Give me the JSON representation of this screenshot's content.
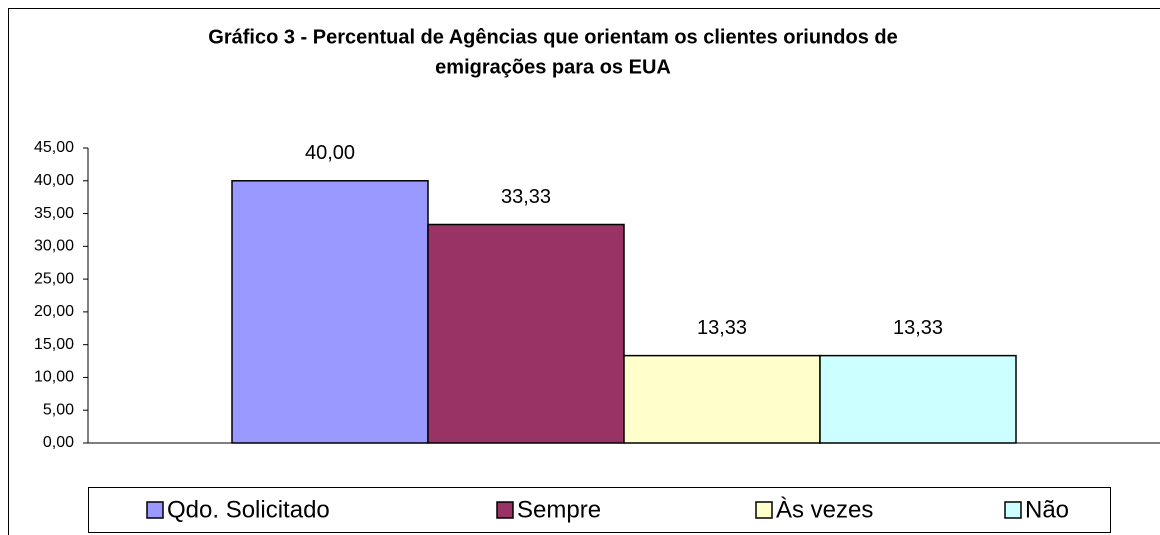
{
  "chart_data": {
    "type": "bar",
    "title": [
      "Gráfico 3 - Percentual de Agências que orientam os clientes oriundos de",
      "emigrações para os EUA"
    ],
    "categories": [
      null
    ],
    "series": [
      {
        "name": "Qdo. Solicitado",
        "color": "#9999ff",
        "values": [
          40
        ],
        "value_labels": [
          "40,00"
        ]
      },
      {
        "name": "Sempre",
        "color": "#993366",
        "values": [
          33.33
        ],
        "value_labels": [
          "33,33"
        ]
      },
      {
        "name": "Às vezes",
        "color": "#ffffcc",
        "values": [
          13.33
        ],
        "value_labels": [
          "13,33"
        ]
      },
      {
        "name": "Não",
        "color": "#ccffff",
        "values": [
          13.33
        ],
        "value_labels": [
          "13,33"
        ]
      }
    ],
    "ylim": [
      0,
      45
    ],
    "yticks": [
      {
        "value": 0,
        "label": "0,00"
      },
      {
        "value": 5,
        "label": "5,00"
      },
      {
        "value": 10,
        "label": "10,00"
      },
      {
        "value": 15,
        "label": "15,00"
      },
      {
        "value": 20,
        "label": "20,00"
      },
      {
        "value": 25,
        "label": "25,00"
      },
      {
        "value": 30,
        "label": "30,00"
      },
      {
        "value": 35,
        "label": "35,00"
      },
      {
        "value": 40,
        "label": "40,00"
      },
      {
        "value": 45,
        "label": "45,00"
      }
    ],
    "legend": "bottom"
  }
}
